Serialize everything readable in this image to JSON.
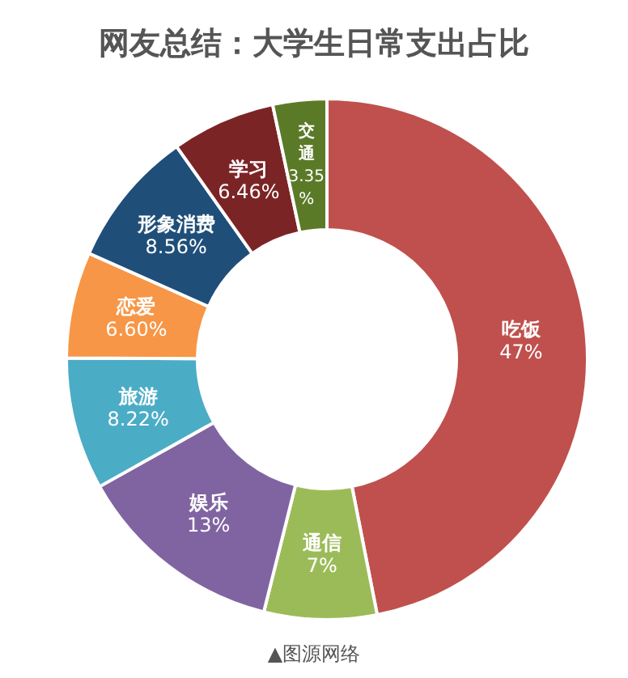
{
  "chart_data": {
    "type": "donut",
    "title": "网友总结：大学生日常支出占比",
    "categories": [
      "吃饭",
      "通信",
      "娱乐",
      "旅游",
      "恋爱",
      "形象消费",
      "学习",
      "交通"
    ],
    "values": [
      47,
      7,
      13,
      8.22,
      6.6,
      8.56,
      6.46,
      3.35
    ],
    "value_labels": [
      "47%",
      "7%",
      "13%",
      "8.22%",
      "6.60%",
      "8.56%",
      "6.46%",
      "3.35%"
    ],
    "colors": [
      "#c0504d",
      "#9bbb59",
      "#8064a2",
      "#4bacc6",
      "#f79646",
      "#1f4e79",
      "#7b2426",
      "#5b7a28"
    ],
    "annotations": [
      "▲图源网络"
    ]
  }
}
